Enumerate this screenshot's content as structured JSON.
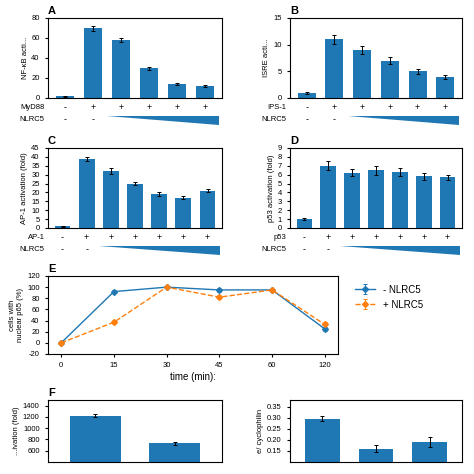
{
  "chart_data": [
    {
      "type": "bar",
      "title": "A",
      "ylabel": "NF-κB acti...",
      "categories": [
        null,
        null,
        null,
        null,
        null,
        null
      ],
      "values": [
        2,
        70,
        58,
        30,
        14,
        12
      ],
      "errors": [
        0.5,
        2.5,
        2,
        1.5,
        1,
        0.8
      ],
      "ylim": [
        0,
        80
      ],
      "yticks": [
        0,
        20,
        40,
        60,
        80
      ],
      "annotations": [
        {
          "label": "MyD88",
          "texts": [
            "-",
            "+",
            "+",
            "+",
            "+",
            "+"
          ]
        },
        {
          "label": "NLRC5",
          "texts": [
            "-",
            "-",
            null,
            null,
            null,
            null
          ]
        }
      ]
    },
    {
      "type": "bar",
      "title": "B",
      "ylabel": "ISRE acti...",
      "categories": [
        null,
        null,
        null,
        null,
        null,
        null
      ],
      "values": [
        1,
        11,
        9,
        7,
        5,
        4
      ],
      "errors": [
        0.2,
        0.8,
        0.7,
        0.6,
        0.5,
        0.4
      ],
      "ylim": [
        0,
        15
      ],
      "yticks": [
        0,
        5,
        10,
        15
      ],
      "annotations": [
        {
          "label": "IPS-1",
          "texts": [
            "-",
            "+",
            "+",
            "+",
            "+",
            "+"
          ]
        },
        {
          "label": "NLRC5",
          "texts": [
            "-",
            "-",
            null,
            null,
            null,
            null
          ]
        }
      ]
    },
    {
      "type": "bar",
      "title": "C",
      "ylabel": "AP-1 activation (fold)",
      "categories": [
        null,
        null,
        null,
        null,
        null,
        null,
        null
      ],
      "values": [
        1,
        39,
        32,
        25,
        19,
        17,
        21
      ],
      "errors": [
        0.3,
        1.2,
        1.5,
        1,
        1,
        0.8,
        1
      ],
      "ylim": [
        0,
        45
      ],
      "yticks": [
        0,
        5,
        10,
        15,
        20,
        25,
        30,
        35,
        40,
        45
      ],
      "annotations": [
        {
          "label": "AP-1",
          "texts": [
            "-",
            "+",
            "+",
            "+",
            "+",
            "+",
            "+"
          ]
        },
        {
          "label": "NLRC5",
          "texts": [
            "-",
            "-",
            null,
            null,
            null,
            null,
            null
          ]
        }
      ]
    },
    {
      "type": "bar",
      "title": "D",
      "ylabel": "p53 activation (fold)",
      "categories": [
        null,
        null,
        null,
        null,
        null,
        null,
        null
      ],
      "values": [
        1,
        7,
        6.2,
        6.5,
        6.3,
        5.8,
        5.7
      ],
      "errors": [
        0.15,
        0.5,
        0.4,
        0.5,
        0.4,
        0.4,
        0.3
      ],
      "ylim": [
        0,
        9
      ],
      "yticks": [
        0,
        1,
        2,
        3,
        4,
        5,
        6,
        7,
        8,
        9
      ],
      "annotations": [
        {
          "label": "p53",
          "texts": [
            "-",
            "+",
            "+",
            "+",
            "+",
            "+",
            "+"
          ]
        },
        {
          "label": "NLRC5",
          "texts": [
            "-",
            "-",
            null,
            null,
            null,
            null,
            null
          ]
        }
      ]
    },
    {
      "type": "line",
      "title": "E",
      "xlabel": "time (min):",
      "ylabel": "cells with\nnuclear p65 (%)",
      "categories": [
        "0",
        "15",
        "30",
        "45",
        "60",
        "120"
      ],
      "series": [
        {
          "name": "- NLRC5",
          "values": [
            0,
            92,
            100,
            95,
            95,
            25
          ],
          "errors": [
            0.5,
            3,
            1.5,
            3,
            2.5,
            3
          ],
          "marker": "D",
          "line_style": "solid"
        },
        {
          "name": "+ NLRC5",
          "values": [
            0,
            37,
            100,
            82,
            95,
            33
          ],
          "errors": [
            0.5,
            4,
            1.5,
            4,
            2.5,
            4
          ],
          "marker": "D",
          "line_style": "dashed"
        }
      ],
      "ylim": [
        -20,
        120
      ],
      "yticks": [
        -20,
        0,
        20,
        40,
        60,
        80,
        100,
        120
      ],
      "legend": "upper left"
    },
    {
      "type": "bar",
      "title": "F",
      "ylabel": "...ivation (fold)",
      "categories": [
        null,
        null
      ],
      "values": [
        1220,
        730
      ],
      "errors": [
        30,
        20
      ],
      "ylim": [
        400,
        1500
      ],
      "yticks": [
        600,
        800,
        1000,
        1200,
        1400
      ]
    },
    {
      "type": "bar",
      "ylabel": "e/ cyclophilin",
      "categories": [
        null,
        null,
        null
      ],
      "values": [
        0.295,
        0.16,
        0.19
      ],
      "errors": [
        0.012,
        0.015,
        0.022
      ],
      "ylim": [
        0.1,
        0.38
      ],
      "yticks": [
        {
          "value": 0.15,
          "label": "0.15"
        },
        {
          "value": 0.2,
          "label": "0.20"
        },
        {
          "value": 0.25,
          "label": "0.25"
        },
        {
          "value": 0.3,
          "label": "0.30"
        },
        {
          "value": 0.35,
          "label": "0.35"
        }
      ]
    }
  ]
}
